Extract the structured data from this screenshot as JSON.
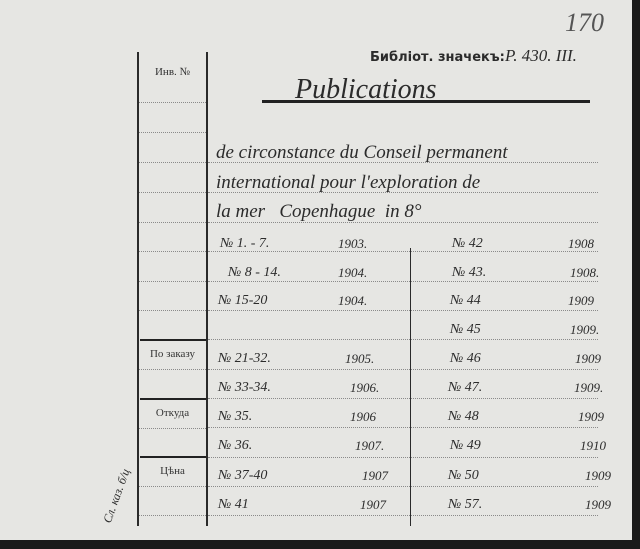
{
  "sheet_number": "170",
  "left_column": {
    "inventory_label": "Инв. №",
    "order_label": "По заказу",
    "source_label": "Откуда",
    "price_label": "Цѣна"
  },
  "margin_note": "Сл. каз. б/ц",
  "shelf_mark": {
    "label": "Библіот. значекъ:",
    "value": "P. 430. III."
  },
  "title": "Publications",
  "description": [
    "de circonstance du Conseil permanent",
    "international pour l'exploration de",
    "la mer   Copenhague  in 8°"
  ],
  "issues_left": [
    {
      "number": "№ 1. - 7.",
      "year": "1903."
    },
    {
      "number": "№ 8 - 14.",
      "year": "1904."
    },
    {
      "number": "№ 15-20",
      "year": "1904."
    },
    {
      "number": "",
      "year": ""
    },
    {
      "number": "№ 21-32.",
      "year": "1905."
    },
    {
      "number": "№ 33-34.",
      "year": "1906."
    },
    {
      "number": "№ 35.",
      "year": "1906"
    },
    {
      "number": "№ 36.",
      "year": "1907."
    },
    {
      "number": "№ 37-40",
      "year": "1907"
    },
    {
      "number": "№ 41",
      "year": "1907"
    }
  ],
  "issues_right": [
    {
      "number": "№ 42",
      "year": "1908"
    },
    {
      "number": "№ 43.",
      "year": "1908."
    },
    {
      "number": "№ 44",
      "year": "1909"
    },
    {
      "number": "№ 45",
      "year": "1909."
    },
    {
      "number": "№ 46",
      "year": "1909"
    },
    {
      "number": "№ 47.",
      "year": "1909."
    },
    {
      "number": "№ 48",
      "year": "1909"
    },
    {
      "number": "№ 49",
      "year": "1910"
    },
    {
      "number": "№ 50",
      "year": "1909"
    },
    {
      "number": "№ 57.",
      "year": "1909"
    }
  ]
}
